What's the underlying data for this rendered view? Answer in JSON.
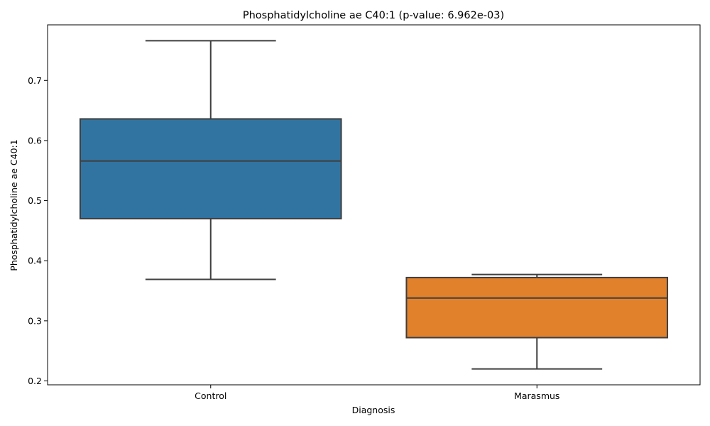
{
  "chart_data": {
    "type": "box",
    "title": "Phosphatidylcholine ae C40:1 (p-value: 6.962e-03)",
    "xlabel": "Diagnosis",
    "ylabel": "Phosphatidylcholine ae C40:1",
    "categories": [
      "Control",
      "Marasmus"
    ],
    "boxes": [
      {
        "category": "Control",
        "whisker_low": 0.369,
        "q1": 0.47,
        "median": 0.566,
        "q3": 0.636,
        "whisker_high": 0.766,
        "color": "#3274a1"
      },
      {
        "category": "Marasmus",
        "whisker_low": 0.22,
        "q1": 0.272,
        "median": 0.338,
        "q3": 0.372,
        "whisker_high": 0.377,
        "color": "#e1812c"
      }
    ],
    "yticks": [
      0.2,
      0.3,
      0.4,
      0.5,
      0.6,
      0.7
    ],
    "ylim": [
      0.1935,
      0.7925
    ],
    "grid": false,
    "line_color": "#3f3f3f"
  }
}
